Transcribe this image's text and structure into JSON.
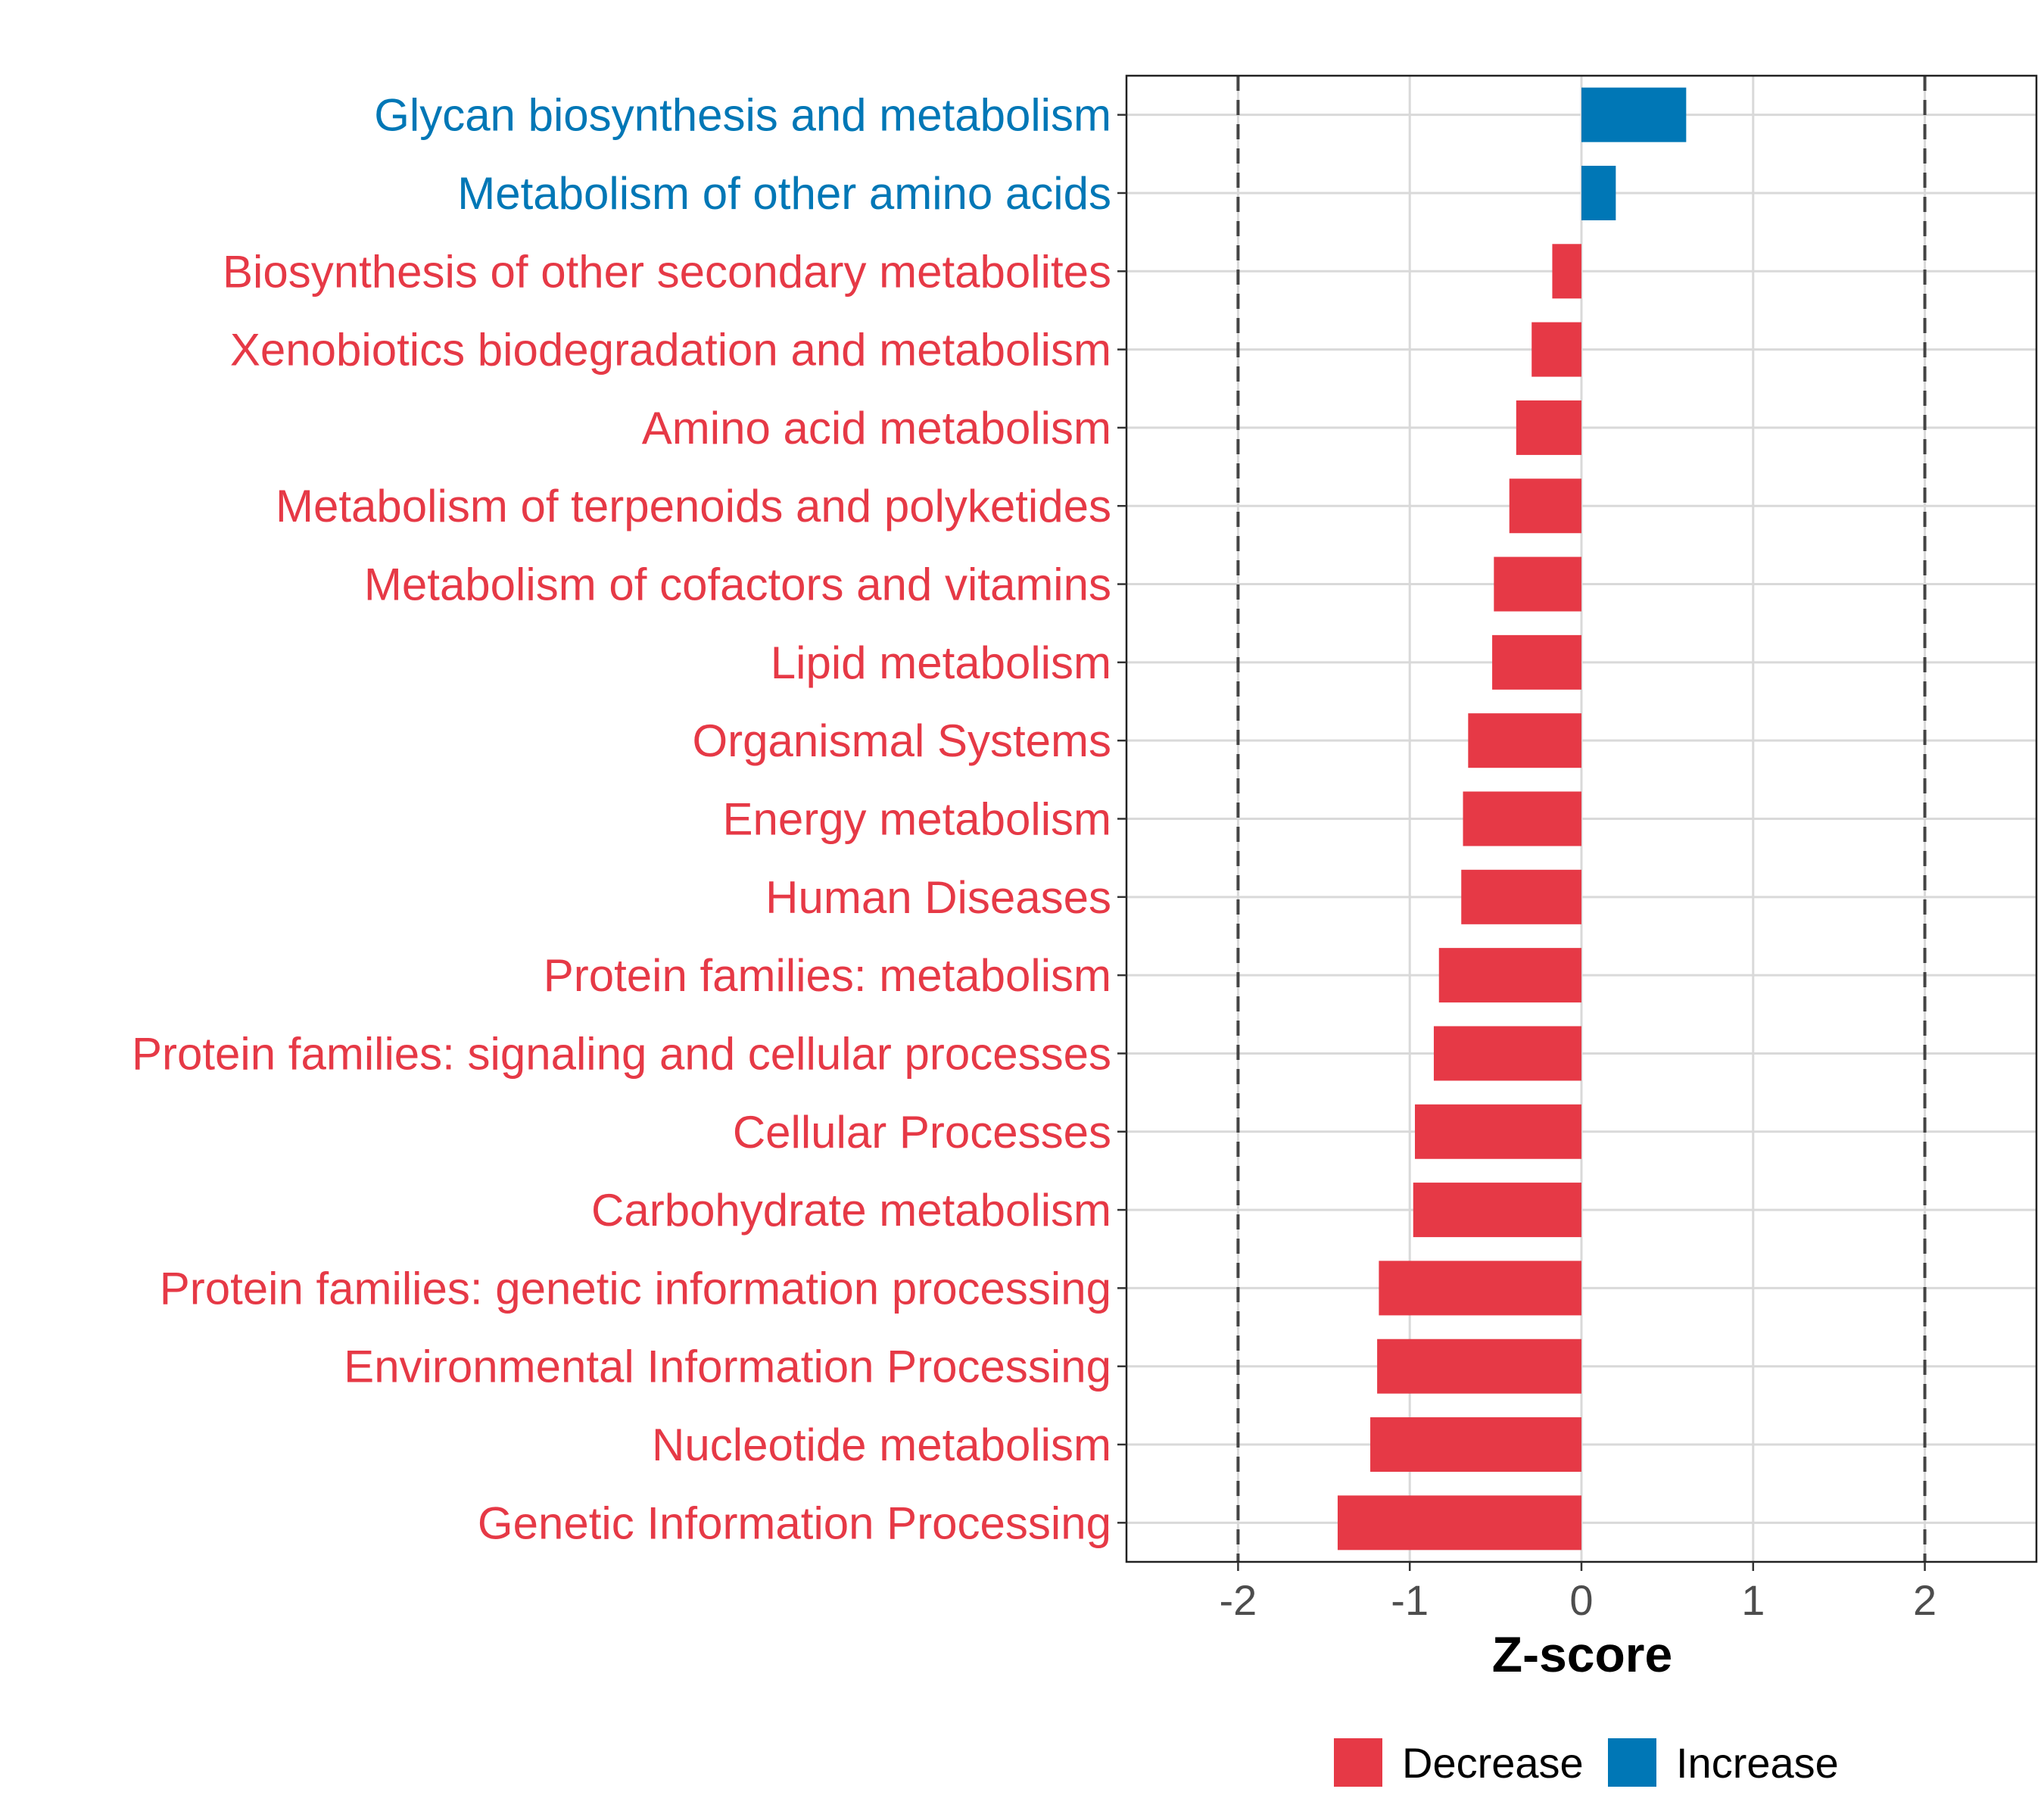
{
  "chart_data": {
    "type": "bar",
    "orientation": "horizontal",
    "title": "",
    "xlabel": "Z-score",
    "ylabel": "",
    "xlim": [
      -2.65,
      2.65
    ],
    "xticks": [
      -2,
      -1,
      0,
      1,
      2
    ],
    "xtick_labels": [
      "-2",
      "-1",
      "0",
      "1",
      "2"
    ],
    "reference_lines": [
      -2,
      2
    ],
    "grid": true,
    "legend_position": "bottom",
    "legend": [
      {
        "name": "Decrease",
        "color": "#e63946"
      },
      {
        "name": "Increase",
        "color": "#0077b6"
      }
    ],
    "categories": [
      "Glycan biosynthesis and metabolism",
      "Metabolism of other amino acids",
      "Biosynthesis of other secondary metabolites",
      "Xenobiotics biodegradation and metabolism",
      "Amino acid metabolism",
      "Metabolism of terpenoids and polyketides",
      "Metabolism of cofactors and vitamins",
      "Lipid metabolism",
      "Organismal Systems",
      "Energy metabolism",
      "Human Diseases",
      "Protein families: metabolism",
      "Protein families: signaling and cellular processes",
      "Cellular Processes",
      "Carbohydrate metabolism",
      "Protein families: genetic information processing",
      "Environmental Information Processing",
      "Nucleotide metabolism",
      "Genetic Information Processing"
    ],
    "values": [
      0.61,
      0.2,
      -0.17,
      -0.29,
      -0.38,
      -0.42,
      -0.51,
      -0.52,
      -0.66,
      -0.69,
      -0.7,
      -0.83,
      -0.86,
      -0.97,
      -0.98,
      -1.18,
      -1.19,
      -1.23,
      -1.42
    ],
    "groups": [
      "Increase",
      "Increase",
      "Decrease",
      "Decrease",
      "Decrease",
      "Decrease",
      "Decrease",
      "Decrease",
      "Decrease",
      "Decrease",
      "Decrease",
      "Decrease",
      "Decrease",
      "Decrease",
      "Decrease",
      "Decrease",
      "Decrease",
      "Decrease",
      "Decrease"
    ]
  }
}
